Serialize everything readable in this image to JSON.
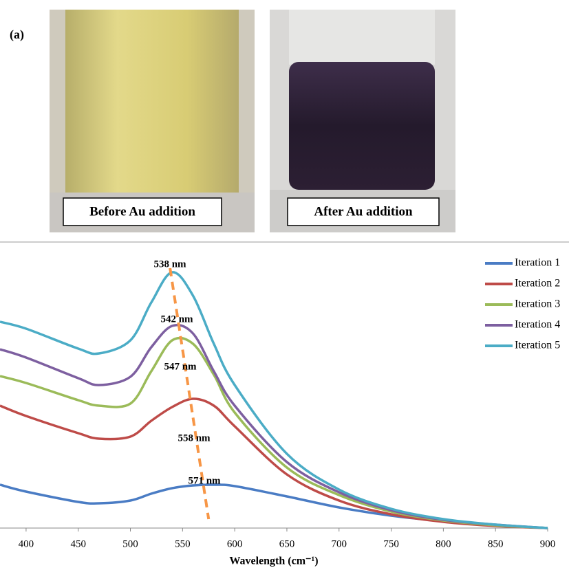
{
  "figure": {
    "panel_label": "(a)",
    "photos": [
      {
        "caption": "Before Au addition"
      },
      {
        "caption": "After Au addition"
      }
    ]
  },
  "chart_data": {
    "type": "line",
    "x_label": "Wavelength (cm⁻¹)",
    "x": [
      375,
      400,
      450,
      470,
      500,
      520,
      540,
      560,
      580,
      600,
      650,
      700,
      750,
      800,
      850,
      900
    ],
    "series": [
      {
        "name": "Iteration 1",
        "color": "#4a7cc4",
        "values": [
          0.63,
          0.53,
          0.38,
          0.36,
          0.4,
          0.5,
          0.58,
          0.62,
          0.63,
          0.61,
          0.46,
          0.3,
          0.18,
          0.1,
          0.04,
          0
        ]
      },
      {
        "name": "Iteration 2",
        "color": "#be4b48",
        "values": [
          1.78,
          1.63,
          1.38,
          1.3,
          1.33,
          1.56,
          1.76,
          1.88,
          1.78,
          1.48,
          0.78,
          0.4,
          0.2,
          0.09,
          0.03,
          0
        ]
      },
      {
        "name": "Iteration 3",
        "color": "#9bbb59",
        "values": [
          2.21,
          2.11,
          1.86,
          1.78,
          1.81,
          2.28,
          2.73,
          2.68,
          2.23,
          1.68,
          0.88,
          0.48,
          0.24,
          0.11,
          0.04,
          0
        ]
      },
      {
        "name": "Iteration 4",
        "color": "#7d5fa0",
        "values": [
          2.6,
          2.48,
          2.18,
          2.08,
          2.2,
          2.63,
          2.94,
          2.83,
          2.28,
          1.78,
          0.96,
          0.52,
          0.26,
          0.12,
          0.05,
          0
        ]
      },
      {
        "name": "Iteration 5",
        "color": "#4bacc6",
        "values": [
          3.0,
          2.9,
          2.61,
          2.54,
          2.73,
          3.28,
          3.72,
          3.38,
          2.68,
          2.08,
          1.08,
          0.56,
          0.28,
          0.13,
          0.05,
          0
        ]
      }
    ],
    "annotations": [
      "538 nm",
      "542 nm",
      "547 nm",
      "558 nm",
      "571 nm"
    ],
    "trend_line": {
      "x": [
        538,
        575
      ],
      "y": [
        3.78,
        0.13
      ],
      "color": "#f79646"
    },
    "xlim": [
      375,
      900
    ],
    "xticks": [
      400,
      450,
      500,
      550,
      600,
      650,
      700,
      750,
      800,
      850,
      900
    ],
    "ylim": [
      0,
      4
    ],
    "legend": "top-right"
  }
}
